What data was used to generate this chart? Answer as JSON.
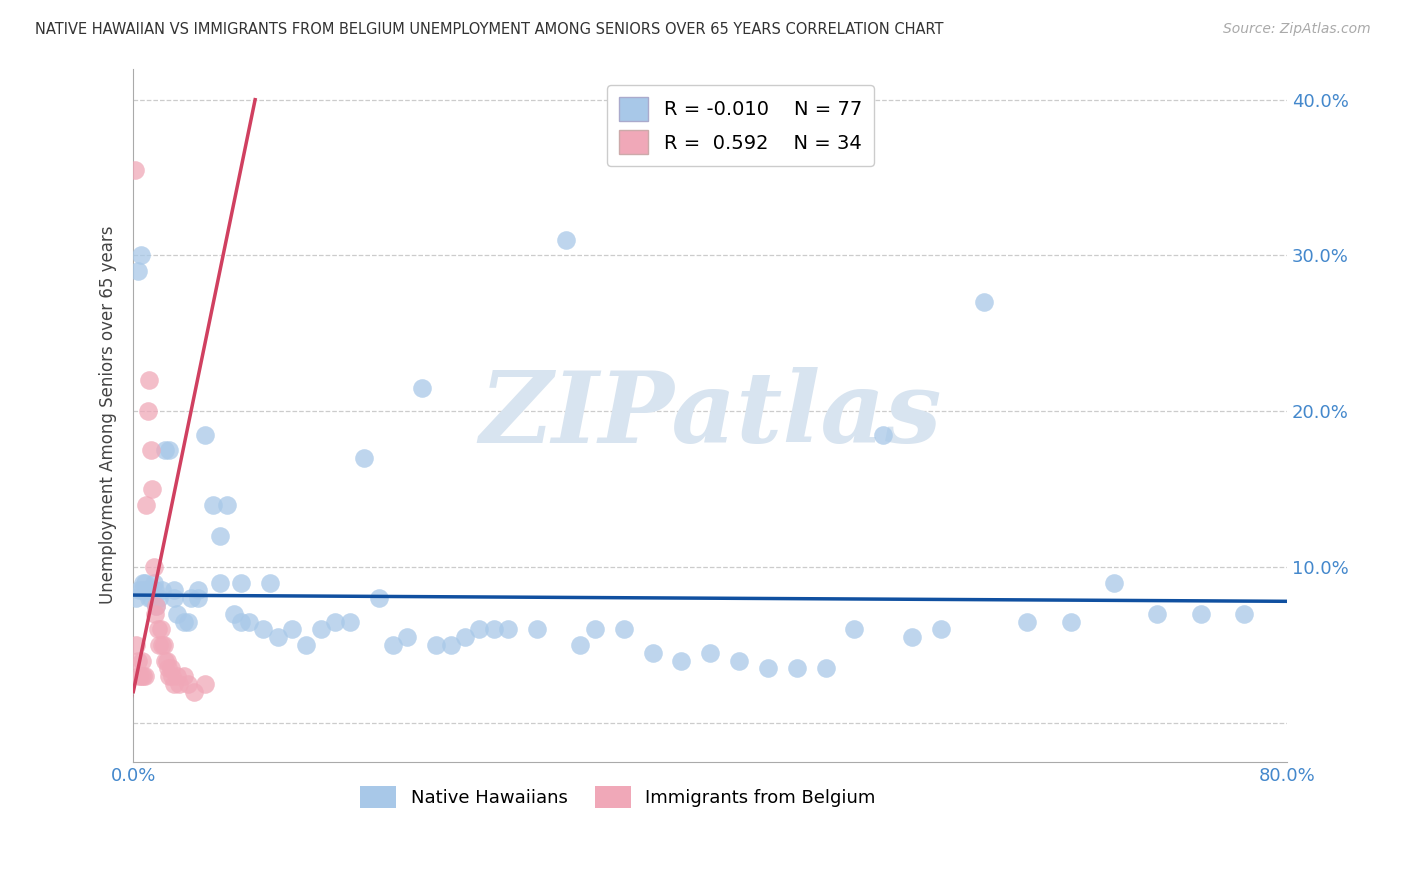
{
  "title": "NATIVE HAWAIIAN VS IMMIGRANTS FROM BELGIUM UNEMPLOYMENT AMONG SENIORS OVER 65 YEARS CORRELATION CHART",
  "source": "Source: ZipAtlas.com",
  "ylabel": "Unemployment Among Seniors over 65 years",
  "xlim": [
    0.0,
    0.8
  ],
  "ylim": [
    -0.025,
    0.42
  ],
  "ytick_vals": [
    0.0,
    0.1,
    0.2,
    0.3,
    0.4
  ],
  "blue_color": "#a8c8e8",
  "blue_line_color": "#1050a0",
  "pink_color": "#f0a8b8",
  "pink_line_color": "#d04060",
  "watermark_color": "#d8e4f0",
  "legend_R_blue": "-0.010",
  "legend_N_blue": "77",
  "legend_R_pink": "0.592",
  "legend_N_pink": "34",
  "blue_slope": -0.005,
  "blue_intercept": 0.082,
  "pink_slope": 4.5,
  "pink_intercept": 0.02,
  "blue_x": [
    0.003,
    0.005,
    0.008,
    0.01,
    0.012,
    0.014,
    0.016,
    0.018,
    0.02,
    0.022,
    0.025,
    0.028,
    0.03,
    0.035,
    0.038,
    0.04,
    0.045,
    0.05,
    0.055,
    0.06,
    0.065,
    0.07,
    0.075,
    0.08,
    0.09,
    0.1,
    0.11,
    0.12,
    0.13,
    0.14,
    0.15,
    0.16,
    0.17,
    0.18,
    0.19,
    0.2,
    0.21,
    0.22,
    0.23,
    0.24,
    0.25,
    0.26,
    0.28,
    0.3,
    0.31,
    0.32,
    0.34,
    0.36,
    0.38,
    0.4,
    0.42,
    0.44,
    0.46,
    0.48,
    0.5,
    0.52,
    0.54,
    0.56,
    0.59,
    0.62,
    0.65,
    0.68,
    0.71,
    0.74,
    0.77,
    0.002,
    0.004,
    0.006,
    0.007,
    0.009,
    0.011,
    0.015,
    0.028,
    0.045,
    0.06,
    0.075,
    0.095
  ],
  "blue_y": [
    0.29,
    0.3,
    0.09,
    0.085,
    0.08,
    0.09,
    0.075,
    0.08,
    0.085,
    0.175,
    0.175,
    0.08,
    0.07,
    0.065,
    0.065,
    0.08,
    0.08,
    0.185,
    0.14,
    0.12,
    0.14,
    0.07,
    0.065,
    0.065,
    0.06,
    0.055,
    0.06,
    0.05,
    0.06,
    0.065,
    0.065,
    0.17,
    0.08,
    0.05,
    0.055,
    0.215,
    0.05,
    0.05,
    0.055,
    0.06,
    0.06,
    0.06,
    0.06,
    0.31,
    0.05,
    0.06,
    0.06,
    0.045,
    0.04,
    0.045,
    0.04,
    0.035,
    0.035,
    0.035,
    0.06,
    0.185,
    0.055,
    0.06,
    0.27,
    0.065,
    0.065,
    0.09,
    0.07,
    0.07,
    0.07,
    0.08,
    0.085,
    0.085,
    0.09,
    0.085,
    0.08,
    0.085,
    0.085,
    0.085,
    0.09,
    0.09,
    0.09
  ],
  "pink_x": [
    0.001,
    0.002,
    0.003,
    0.004,
    0.005,
    0.006,
    0.007,
    0.008,
    0.009,
    0.01,
    0.011,
    0.012,
    0.013,
    0.014,
    0.015,
    0.016,
    0.017,
    0.018,
    0.019,
    0.02,
    0.021,
    0.022,
    0.023,
    0.024,
    0.025,
    0.026,
    0.027,
    0.028,
    0.03,
    0.032,
    0.035,
    0.038,
    0.042,
    0.05
  ],
  "pink_y": [
    0.355,
    0.05,
    0.04,
    0.03,
    0.03,
    0.04,
    0.03,
    0.03,
    0.14,
    0.2,
    0.22,
    0.175,
    0.15,
    0.1,
    0.07,
    0.075,
    0.06,
    0.05,
    0.06,
    0.05,
    0.05,
    0.04,
    0.04,
    0.035,
    0.03,
    0.035,
    0.03,
    0.025,
    0.03,
    0.025,
    0.03,
    0.025,
    0.02,
    0.025
  ]
}
